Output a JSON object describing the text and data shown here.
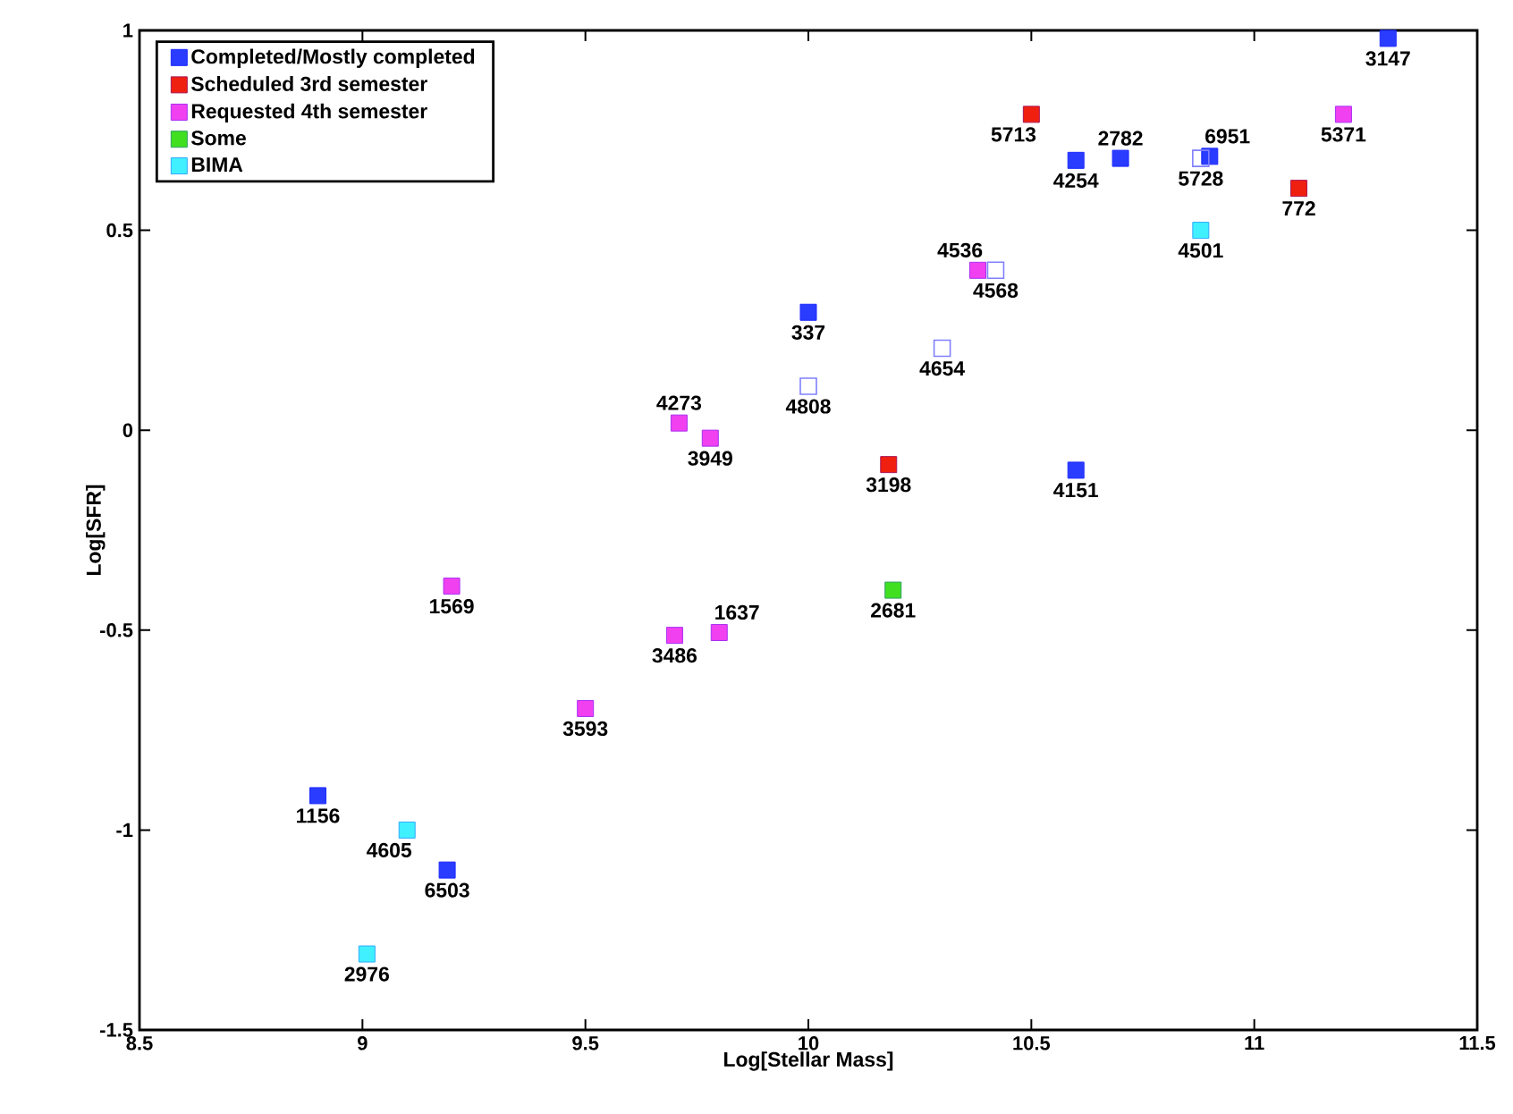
{
  "chart_data": {
    "type": "scatter",
    "xlabel": "Log[Stellar Mass]",
    "ylabel": "Log[SFR]",
    "xlim": [
      8.5,
      11.5
    ],
    "ylim": [
      -1.5,
      1
    ],
    "xticks": [
      8.5,
      9,
      9.5,
      10,
      10.5,
      11,
      11.5
    ],
    "yticks": [
      -1.5,
      -1,
      -0.5,
      0,
      0.5,
      1
    ],
    "legend": "top left",
    "marker": "square",
    "series": [
      {
        "name": "Completed/Mostly completed",
        "color": "#2a3cff",
        "x": [
          11.3,
          10.6,
          10.7,
          10.9,
          10.0,
          10.6,
          8.9,
          9.19
        ],
        "values": [
          0.98,
          0.675,
          0.68,
          0.685,
          0.295,
          -0.1,
          -0.914,
          -1.1
        ]
      },
      {
        "name": "Scheduled 3rd semester",
        "color": "#f02010",
        "x": [
          10.5,
          11.1,
          10.18
        ],
        "values": [
          0.79,
          0.605,
          -0.086
        ]
      },
      {
        "name": "Requested 4th semester",
        "color": "#f040f0",
        "x": [
          11.2,
          10.38,
          9.71,
          9.78,
          9.2,
          9.7,
          9.8,
          9.5
        ],
        "values": [
          0.79,
          0.4,
          0.018,
          -0.02,
          -0.39,
          -0.513,
          -0.506,
          -0.696
        ]
      },
      {
        "name": "Some",
        "color": "#40e020",
        "x": [
          10.19
        ],
        "values": [
          -0.4
        ]
      },
      {
        "name": "BIMA",
        "color": "#40f0ff",
        "x": [
          10.88,
          9.1,
          9.01
        ],
        "values": [
          0.5,
          -1.0,
          -1.31
        ]
      },
      {
        "color": "#8080ff",
        "x": [
          10.88,
          10.42,
          10.3,
          10.0
        ],
        "values": [
          0.68,
          0.4,
          0.205,
          0.11
        ]
      }
    ],
    "annotations": [
      {
        "text": "3147",
        "x": 11.3,
        "y": 0.98
      },
      {
        "text": "5713",
        "x": 10.5,
        "y": 0.79
      },
      {
        "text": "4254",
        "x": 10.6,
        "y": 0.675
      },
      {
        "text": "2782",
        "x": 10.7,
        "y": 0.68
      },
      {
        "text": "5728",
        "x": 10.88,
        "y": 0.68
      },
      {
        "text": "6951",
        "x": 10.9,
        "y": 0.685
      },
      {
        "text": "5371",
        "x": 11.2,
        "y": 0.79
      },
      {
        "text": "772",
        "x": 11.1,
        "y": 0.605
      },
      {
        "text": "4501",
        "x": 10.88,
        "y": 0.5
      },
      {
        "text": "4536",
        "x": 10.38,
        "y": 0.4
      },
      {
        "text": "4568",
        "x": 10.42,
        "y": 0.4
      },
      {
        "text": "337",
        "x": 10.0,
        "y": 0.295
      },
      {
        "text": "4654",
        "x": 10.3,
        "y": 0.205
      },
      {
        "text": "4808",
        "x": 10.0,
        "y": 0.11
      },
      {
        "text": "3198",
        "x": 10.18,
        "y": -0.086
      },
      {
        "text": "4151",
        "x": 10.6,
        "y": -0.1
      },
      {
        "text": "4273",
        "x": 9.71,
        "y": 0.018
      },
      {
        "text": "3949",
        "x": 9.78,
        "y": -0.02
      },
      {
        "text": "1569",
        "x": 9.2,
        "y": -0.39
      },
      {
        "text": "3486",
        "x": 9.7,
        "y": -0.513
      },
      {
        "text": "1637",
        "x": 9.8,
        "y": -0.506
      },
      {
        "text": "3593",
        "x": 9.5,
        "y": -0.696
      },
      {
        "text": "2681",
        "x": 10.19,
        "y": -0.4
      },
      {
        "text": "1156",
        "x": 8.9,
        "y": -0.914
      },
      {
        "text": "4605",
        "x": 9.1,
        "y": -1.0
      },
      {
        "text": "6503",
        "x": 9.19,
        "y": -1.1
      },
      {
        "text": "2976",
        "x": 9.01,
        "y": -1.31
      }
    ]
  }
}
